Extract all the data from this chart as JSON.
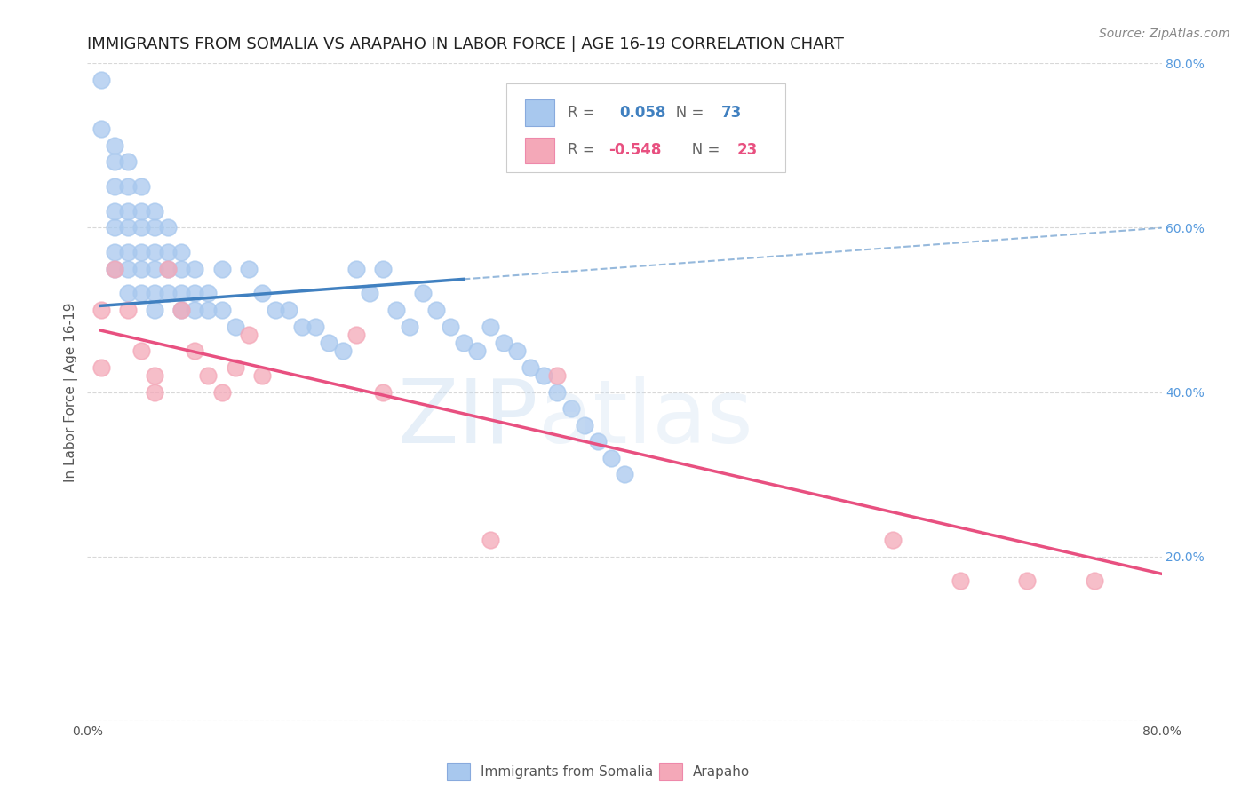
{
  "title": "IMMIGRANTS FROM SOMALIA VS ARAPAHO IN LABOR FORCE | AGE 16-19 CORRELATION CHART",
  "source": "Source: ZipAtlas.com",
  "ylabel": "In Labor Force | Age 16-19",
  "xlim": [
    0.0,
    0.8
  ],
  "ylim": [
    0.0,
    0.8
  ],
  "blue_scatter_x": [
    0.01,
    0.01,
    0.02,
    0.02,
    0.02,
    0.02,
    0.02,
    0.02,
    0.02,
    0.03,
    0.03,
    0.03,
    0.03,
    0.03,
    0.03,
    0.03,
    0.04,
    0.04,
    0.04,
    0.04,
    0.04,
    0.04,
    0.05,
    0.05,
    0.05,
    0.05,
    0.05,
    0.05,
    0.06,
    0.06,
    0.06,
    0.06,
    0.07,
    0.07,
    0.07,
    0.07,
    0.08,
    0.08,
    0.08,
    0.09,
    0.09,
    0.1,
    0.1,
    0.11,
    0.12,
    0.13,
    0.14,
    0.15,
    0.16,
    0.17,
    0.18,
    0.19,
    0.2,
    0.21,
    0.22,
    0.23,
    0.24,
    0.25,
    0.26,
    0.27,
    0.28,
    0.29,
    0.3,
    0.31,
    0.32,
    0.33,
    0.34,
    0.35,
    0.36,
    0.37,
    0.38,
    0.39,
    0.4
  ],
  "blue_scatter_y": [
    0.78,
    0.72,
    0.7,
    0.68,
    0.65,
    0.62,
    0.6,
    0.57,
    0.55,
    0.68,
    0.65,
    0.62,
    0.6,
    0.57,
    0.55,
    0.52,
    0.65,
    0.62,
    0.6,
    0.57,
    0.55,
    0.52,
    0.62,
    0.6,
    0.57,
    0.55,
    0.52,
    0.5,
    0.6,
    0.57,
    0.55,
    0.52,
    0.57,
    0.55,
    0.52,
    0.5,
    0.55,
    0.52,
    0.5,
    0.52,
    0.5,
    0.55,
    0.5,
    0.48,
    0.55,
    0.52,
    0.5,
    0.5,
    0.48,
    0.48,
    0.46,
    0.45,
    0.55,
    0.52,
    0.55,
    0.5,
    0.48,
    0.52,
    0.5,
    0.48,
    0.46,
    0.45,
    0.48,
    0.46,
    0.45,
    0.43,
    0.42,
    0.4,
    0.38,
    0.36,
    0.34,
    0.32,
    0.3
  ],
  "pink_scatter_x": [
    0.01,
    0.01,
    0.02,
    0.03,
    0.04,
    0.05,
    0.05,
    0.06,
    0.07,
    0.08,
    0.09,
    0.1,
    0.11,
    0.12,
    0.13,
    0.2,
    0.22,
    0.3,
    0.35,
    0.6,
    0.65,
    0.7,
    0.75
  ],
  "pink_scatter_y": [
    0.5,
    0.43,
    0.55,
    0.5,
    0.45,
    0.42,
    0.4,
    0.55,
    0.5,
    0.45,
    0.42,
    0.4,
    0.43,
    0.47,
    0.42,
    0.47,
    0.4,
    0.22,
    0.42,
    0.22,
    0.17,
    0.17,
    0.17
  ],
  "blue_line_start_x": 0.01,
  "blue_line_end_solid_x": 0.28,
  "blue_line_end_x": 0.8,
  "blue_line_start_y": 0.505,
  "blue_line_slope": 0.12,
  "pink_line_start_x": 0.01,
  "pink_line_end_x": 0.8,
  "pink_line_start_y": 0.475,
  "pink_line_slope": -0.375,
  "blue_color": "#A8C8EE",
  "pink_color": "#F4A8B8",
  "blue_line_color": "#4080C0",
  "pink_line_color": "#E85080",
  "legend_R_blue": "0.058",
  "legend_N_blue": "73",
  "legend_R_pink": "-0.548",
  "legend_N_pink": "23",
  "legend_label_blue": "Immigrants from Somalia",
  "legend_label_pink": "Arapaho",
  "title_fontsize": 13,
  "source_fontsize": 10,
  "axis_label_fontsize": 11,
  "tick_fontsize": 10,
  "background_color": "#FFFFFF",
  "grid_color": "#D8D8D8"
}
